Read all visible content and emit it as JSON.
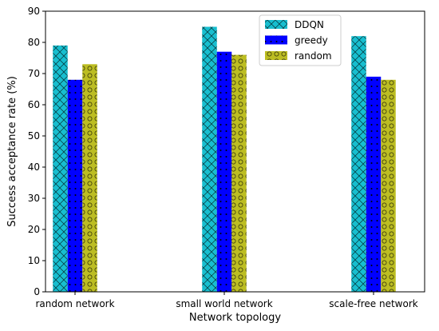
{
  "chart_data": {
    "type": "bar",
    "title": "",
    "xlabel": "Network topology",
    "ylabel": "Success acceptance rate (%)",
    "ylim": [
      0,
      90
    ],
    "yticks": [
      0,
      10,
      20,
      30,
      40,
      50,
      60,
      70,
      80,
      90
    ],
    "categories": [
      "random network",
      "small world network",
      "scale-free network"
    ],
    "series": [
      {
        "name": "DDQN",
        "values": [
          79,
          85,
          82
        ],
        "color": "#17becf",
        "hatch": "cross"
      },
      {
        "name": "greedy",
        "values": [
          68,
          77,
          69
        ],
        "color": "#0000ff",
        "hatch": "dots"
      },
      {
        "name": "random",
        "values": [
          73,
          76,
          68
        ],
        "color": "#bcbd22",
        "hatch": "circles"
      }
    ],
    "legend": {
      "position": "top-center"
    },
    "grid": false
  }
}
